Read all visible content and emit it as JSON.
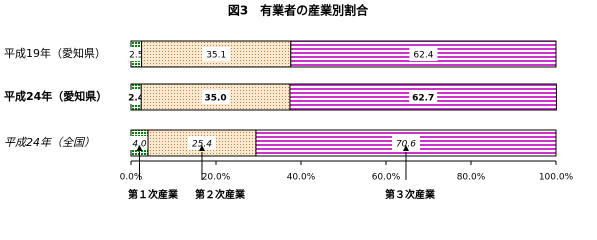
{
  "chart_data": {
    "type": "stacked-bar-horizontal",
    "title": "図3　有業者の産業別割合",
    "categories": [
      "平成19年（愛知県）",
      "平成24年（愛知県）",
      "平成24年（全国）"
    ],
    "series": [
      {
        "name": "第１次産業",
        "color": "#008000",
        "values": [
          2.5,
          2.4,
          4.0
        ],
        "value_labels": [
          "2.5",
          "2.4",
          "4.0"
        ]
      },
      {
        "name": "第２次産業",
        "color": "#b8864b",
        "values": [
          35.1,
          35.0,
          25.4
        ],
        "value_labels": [
          "35.1",
          "35.0",
          "25.4"
        ]
      },
      {
        "name": "第３次産業",
        "color": "#cc33cc",
        "values": [
          62.4,
          62.7,
          70.6
        ],
        "value_labels": [
          "62.4",
          "62.7",
          "70.6"
        ]
      }
    ],
    "xlim": [
      0,
      100
    ],
    "xticks": [
      {
        "value": 0,
        "label": "0.0%"
      },
      {
        "value": 20,
        "label": "20.0%"
      },
      {
        "value": 40,
        "label": "40.0%"
      },
      {
        "value": 60,
        "label": "60.0%"
      },
      {
        "value": 80,
        "label": "80.0%"
      },
      {
        "value": 100,
        "label": "100.0%"
      }
    ]
  }
}
